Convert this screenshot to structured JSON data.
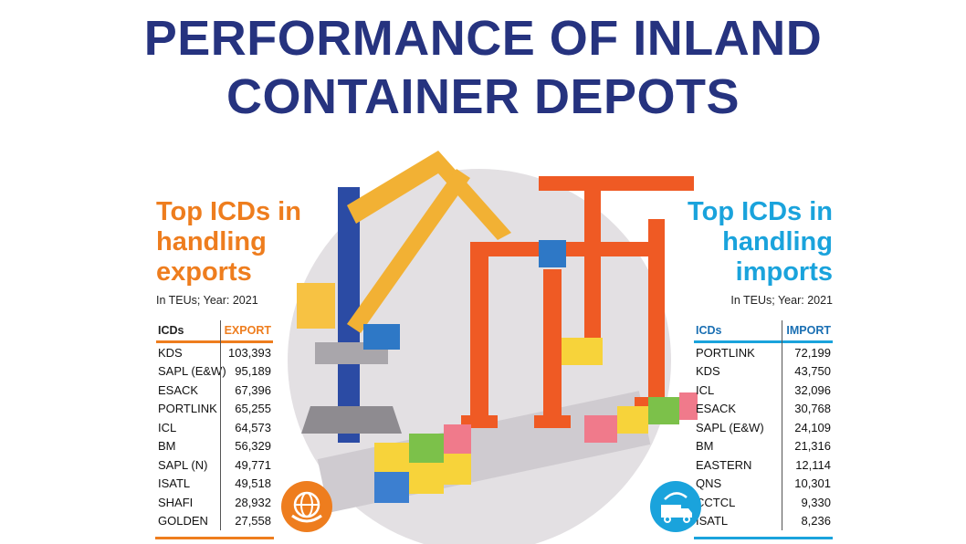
{
  "title": {
    "line1": "PERFORMANCE OF INLAND",
    "line2": "CONTAINER DEPOTS"
  },
  "colors": {
    "title": "#26337f",
    "exports": "#ee7d1e",
    "imports": "#1aa3dc"
  },
  "chart_data": [
    {
      "type": "table",
      "title_lines": [
        "Top ICDs in",
        "handling",
        "exports"
      ],
      "note": "In TEUs; Year: 2021",
      "columns": [
        "ICDs",
        "EXPORT"
      ],
      "rows": [
        [
          "KDS",
          "103,393"
        ],
        [
          "SAPL (E&W)",
          "95,189"
        ],
        [
          "ESACK",
          "67,396"
        ],
        [
          "PORTLINK",
          "65,255"
        ],
        [
          "ICL",
          "64,573"
        ],
        [
          "BM",
          "56,329"
        ],
        [
          "SAPL (N)",
          "49,771"
        ],
        [
          "ISATL",
          "49,518"
        ],
        [
          "SHAFI",
          "28,932"
        ],
        [
          "GOLDEN",
          "27,558"
        ]
      ]
    },
    {
      "type": "table",
      "title_lines": [
        "Top ICDs in",
        "handling",
        "imports"
      ],
      "note": "In TEUs; Year: 2021",
      "columns": [
        "ICDs",
        "IMPORT"
      ],
      "rows": [
        [
          "PORTLINK",
          "72,199"
        ],
        [
          "KDS",
          "43,750"
        ],
        [
          "ICL",
          "32,096"
        ],
        [
          "ESACK",
          "30,768"
        ],
        [
          "SAPL (E&W)",
          "24,109"
        ],
        [
          "BM",
          "21,316"
        ],
        [
          "EASTERN",
          "12,114"
        ],
        [
          "QNS",
          "10,301"
        ],
        [
          "CCTCL",
          "9,330"
        ],
        [
          "ISATL",
          "8,236"
        ]
      ]
    }
  ]
}
